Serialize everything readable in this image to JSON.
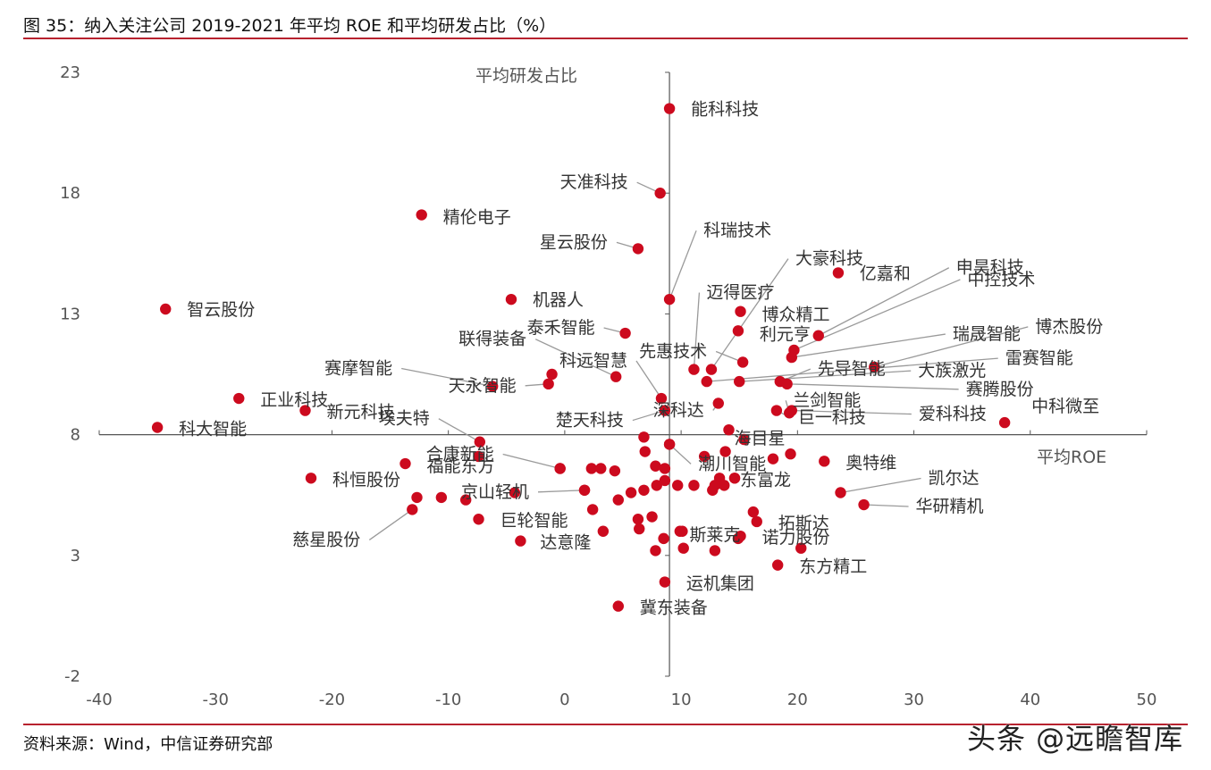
{
  "figure": {
    "title": "图 35：纳入关注公司 2019-2021 年平均 ROE 和平均研发占比（%）",
    "source": "资料来源：Wind，中信证券研究部",
    "watermark": "头条 @远瞻智库"
  },
  "chart_data": {
    "type": "scatter",
    "title": "纳入关注公司 2019-2021 年平均 ROE 和平均研发占比（%）",
    "xlabel": "平均ROE",
    "ylabel": "平均研发占比",
    "xlim": [
      -40,
      50
    ],
    "ylim": [
      -2,
      23
    ],
    "x_ticks": [
      "-40",
      "-30",
      "-20",
      "-10",
      "0",
      "10",
      "20",
      "30",
      "40",
      "50"
    ],
    "y_ticks": [
      "23",
      "18",
      "13",
      "8",
      "3",
      "-2"
    ],
    "axes_cross": {
      "x": 9,
      "y": 8
    },
    "point_color": "#cc0a1e",
    "labeled_points": [
      {
        "name": "能科科技",
        "x": 9.0,
        "y": 21.5
      },
      {
        "name": "天准科技",
        "x": 8.2,
        "y": 18.0
      },
      {
        "name": "精伦电子",
        "x": -12.3,
        "y": 17.1
      },
      {
        "name": "星云股份",
        "x": 6.3,
        "y": 15.7
      },
      {
        "name": "科瑞技术",
        "x": 9.0,
        "y": 13.6
      },
      {
        "name": "机器人",
        "x": -4.6,
        "y": 13.6
      },
      {
        "name": "智云股份",
        "x": -34.3,
        "y": 13.2
      },
      {
        "name": "泰禾智能",
        "x": 5.2,
        "y": 12.2
      },
      {
        "name": "大豪科技",
        "x": 12.6,
        "y": 10.7
      },
      {
        "name": "迈得医疗",
        "x": 11.1,
        "y": 10.7
      },
      {
        "name": "亿嘉和",
        "x": 23.5,
        "y": 14.7
      },
      {
        "name": "博众精工",
        "x": 15.1,
        "y": 13.1
      },
      {
        "name": "利元亨",
        "x": 14.9,
        "y": 12.3
      },
      {
        "name": "先惠技术",
        "x": 15.3,
        "y": 11.0
      },
      {
        "name": "申昊科技",
        "x": 21.8,
        "y": 12.1
      },
      {
        "name": "中控技术",
        "x": 19.7,
        "y": 11.5
      },
      {
        "name": "瑞晟智能",
        "x": 19.5,
        "y": 11.2
      },
      {
        "name": "博杰股份",
        "x": 26.6,
        "y": 10.8
      },
      {
        "name": "联得装备",
        "x": 4.4,
        "y": 10.4
      },
      {
        "name": "科远智慧",
        "x": 8.3,
        "y": 9.5
      },
      {
        "name": "赛摩智能",
        "x": -6.2,
        "y": 10.0
      },
      {
        "name": "先导智能",
        "x": 18.5,
        "y": 10.2
      },
      {
        "name": "雷赛智能",
        "x": 12.2,
        "y": 10.2
      },
      {
        "name": "大族激光",
        "x": 15.0,
        "y": 10.2
      },
      {
        "name": "赛腾股份",
        "x": 19.1,
        "y": 10.1
      },
      {
        "name": "天永智能",
        "x": -1.4,
        "y": 10.1
      },
      {
        "name": "正业科技",
        "x": -28.0,
        "y": 9.5
      },
      {
        "name": "深科达",
        "x": 13.2,
        "y": 9.3
      },
      {
        "name": "兰剑智能",
        "x": 19.3,
        "y": 8.9
      },
      {
        "name": "新元科技",
        "x": -22.3,
        "y": 9.0
      },
      {
        "name": "楚天科技",
        "x": 8.6,
        "y": 9.0
      },
      {
        "name": "巨一科技",
        "x": 18.2,
        "y": 9.0
      },
      {
        "name": "爱科科技",
        "x": 19.5,
        "y": 9.0
      },
      {
        "name": "海目星",
        "x": 14.1,
        "y": 8.2
      },
      {
        "name": "中科微至",
        "x": 37.8,
        "y": 8.5
      },
      {
        "name": "科大智能",
        "x": -35.0,
        "y": 8.3
      },
      {
        "name": "埃夫特",
        "x": -7.3,
        "y": 7.7
      },
      {
        "name": "潮川智能",
        "x": 9.0,
        "y": 7.6
      },
      {
        "name": "合康新能",
        "x": -0.4,
        "y": 6.6
      },
      {
        "name": "福能东方",
        "x": -13.7,
        "y": 6.8
      },
      {
        "name": "奥特维",
        "x": 22.3,
        "y": 6.9
      },
      {
        "name": "科恒股份",
        "x": -21.8,
        "y": 6.2
      },
      {
        "name": "东富龙",
        "x": 14.6,
        "y": 6.2
      },
      {
        "name": "京山轻机",
        "x": 1.7,
        "y": 5.7
      },
      {
        "name": "凯尔达",
        "x": 23.7,
        "y": 5.6
      },
      {
        "name": "巨轮智能",
        "x": -7.4,
        "y": 4.5
      },
      {
        "name": "华研精机",
        "x": 25.7,
        "y": 5.1
      },
      {
        "name": "拓斯达",
        "x": 16.5,
        "y": 4.4
      },
      {
        "name": "慈星股份",
        "x": -13.1,
        "y": 4.9
      },
      {
        "name": "斯莱克",
        "x": 10.1,
        "y": 4.0
      },
      {
        "name": "诺力股份",
        "x": 15.1,
        "y": 3.8
      },
      {
        "name": "达意隆",
        "x": -3.8,
        "y": 3.6
      },
      {
        "name": "东方精工",
        "x": 18.3,
        "y": 2.6
      },
      {
        "name": "运机集团",
        "x": 8.6,
        "y": 1.9
      },
      {
        "name": "冀东装备",
        "x": 4.6,
        "y": 0.9
      }
    ],
    "unlabeled_points": [
      {
        "x": 2.3,
        "y": 6.6
      },
      {
        "x": 3.1,
        "y": 6.6
      },
      {
        "x": 4.3,
        "y": 6.5
      },
      {
        "x": 7.8,
        "y": 6.7
      },
      {
        "x": 8.6,
        "y": 6.6
      },
      {
        "x": 13.3,
        "y": 6.2
      },
      {
        "x": 17.9,
        "y": 7.0
      },
      {
        "x": 19.4,
        "y": 7.2
      },
      {
        "x": -10.6,
        "y": 5.4
      },
      {
        "x": -8.5,
        "y": 5.3
      },
      {
        "x": -12.7,
        "y": 5.4
      },
      {
        "x": -4.3,
        "y": 5.6
      },
      {
        "x": 4.6,
        "y": 5.3
      },
      {
        "x": 5.7,
        "y": 5.6
      },
      {
        "x": 6.8,
        "y": 5.7
      },
      {
        "x": 7.9,
        "y": 5.9
      },
      {
        "x": 8.6,
        "y": 6.1
      },
      {
        "x": 11.1,
        "y": 5.9
      },
      {
        "x": 12.7,
        "y": 5.7
      },
      {
        "x": 2.4,
        "y": 4.9
      },
      {
        "x": 6.3,
        "y": 4.5
      },
      {
        "x": 7.5,
        "y": 4.6
      },
      {
        "x": 3.3,
        "y": 4.0
      },
      {
        "x": 6.4,
        "y": 4.1
      },
      {
        "x": 8.5,
        "y": 3.7
      },
      {
        "x": 7.8,
        "y": 3.2
      },
      {
        "x": 10.2,
        "y": 3.3
      },
      {
        "x": 12.9,
        "y": 3.2
      },
      {
        "x": 20.3,
        "y": 3.3
      },
      {
        "x": 6.9,
        "y": 7.3
      },
      {
        "x": 6.8,
        "y": 7.9
      },
      {
        "x": 12.0,
        "y": 7.1
      },
      {
        "x": 13.8,
        "y": 7.3
      },
      {
        "x": 15.4,
        "y": 7.8
      },
      {
        "x": -7.4,
        "y": 7.1
      },
      {
        "x": -1.1,
        "y": 10.5
      },
      {
        "x": -0.4,
        "y": 6.6
      },
      {
        "x": 1.7,
        "y": 5.7
      },
      {
        "x": 9.0,
        "y": 7.6
      },
      {
        "x": 14.6,
        "y": 6.2
      },
      {
        "x": 9.7,
        "y": 5.9
      },
      {
        "x": 12.9,
        "y": 5.9
      },
      {
        "x": 13.7,
        "y": 5.9
      },
      {
        "x": 9.9,
        "y": 4.0
      },
      {
        "x": 14.9,
        "y": 3.7
      },
      {
        "x": 16.2,
        "y": 4.8
      }
    ]
  }
}
